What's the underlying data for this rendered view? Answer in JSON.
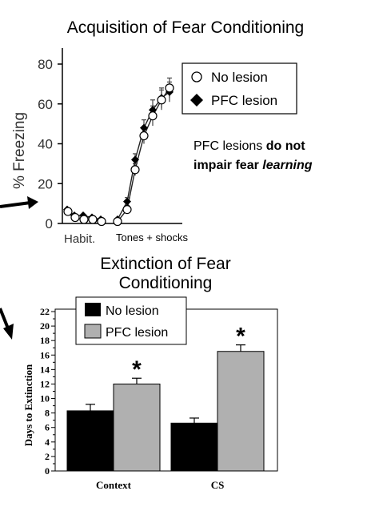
{
  "chart_data": [
    {
      "type": "line",
      "title": "Acquisition of Fear Conditioning",
      "ylabel": "% Freezing",
      "ylim": [
        0,
        80
      ],
      "yticks": [
        0,
        20,
        40,
        60,
        80
      ],
      "xlabels": {
        "habituation": "Habit.",
        "conditioning": "Tones + shocks"
      },
      "legend_position": "top-right",
      "annotation": {
        "prefix": "PFC lesions ",
        "bold": "do not",
        "line2_bold": "impair fear ",
        "line2_bold_italic": "learning"
      },
      "series": [
        {
          "name": "No lesion",
          "marker": "open-circle",
          "habituation": [
            6,
            3,
            2,
            2,
            1
          ],
          "conditioning": [
            1,
            7,
            27,
            44,
            54,
            62,
            68
          ],
          "error": [
            0,
            2,
            3,
            4,
            5,
            5,
            5
          ]
        },
        {
          "name": "PFC lesion",
          "marker": "filled-diamond",
          "habituation": [
            7,
            4,
            4,
            3,
            2
          ],
          "conditioning": [
            2,
            11,
            32,
            48,
            57,
            63,
            66
          ],
          "error": [
            0,
            2,
            3,
            4,
            5,
            5,
            5
          ]
        }
      ]
    },
    {
      "type": "bar",
      "title": "Extinction of Fear Conditioning",
      "title_lines": [
        "Extinction of Fear",
        "Conditioning"
      ],
      "ylabel": "Days to Extinction",
      "ylim": [
        0,
        22
      ],
      "yticks": [
        0,
        2,
        4,
        6,
        8,
        10,
        12,
        14,
        16,
        18,
        20,
        22
      ],
      "categories": [
        "Context",
        "CS"
      ],
      "legend_position": "top-left",
      "significance_marker": "*",
      "series": [
        {
          "name": "No lesion",
          "color": "#000000",
          "values": [
            8.3,
            6.6
          ],
          "error": [
            0.9,
            0.7
          ]
        },
        {
          "name": "PFC lesion",
          "color": "#b0b0b0",
          "values": [
            12.0,
            16.5
          ],
          "error": [
            0.8,
            0.9
          ],
          "significant": [
            true,
            true
          ]
        }
      ]
    }
  ]
}
